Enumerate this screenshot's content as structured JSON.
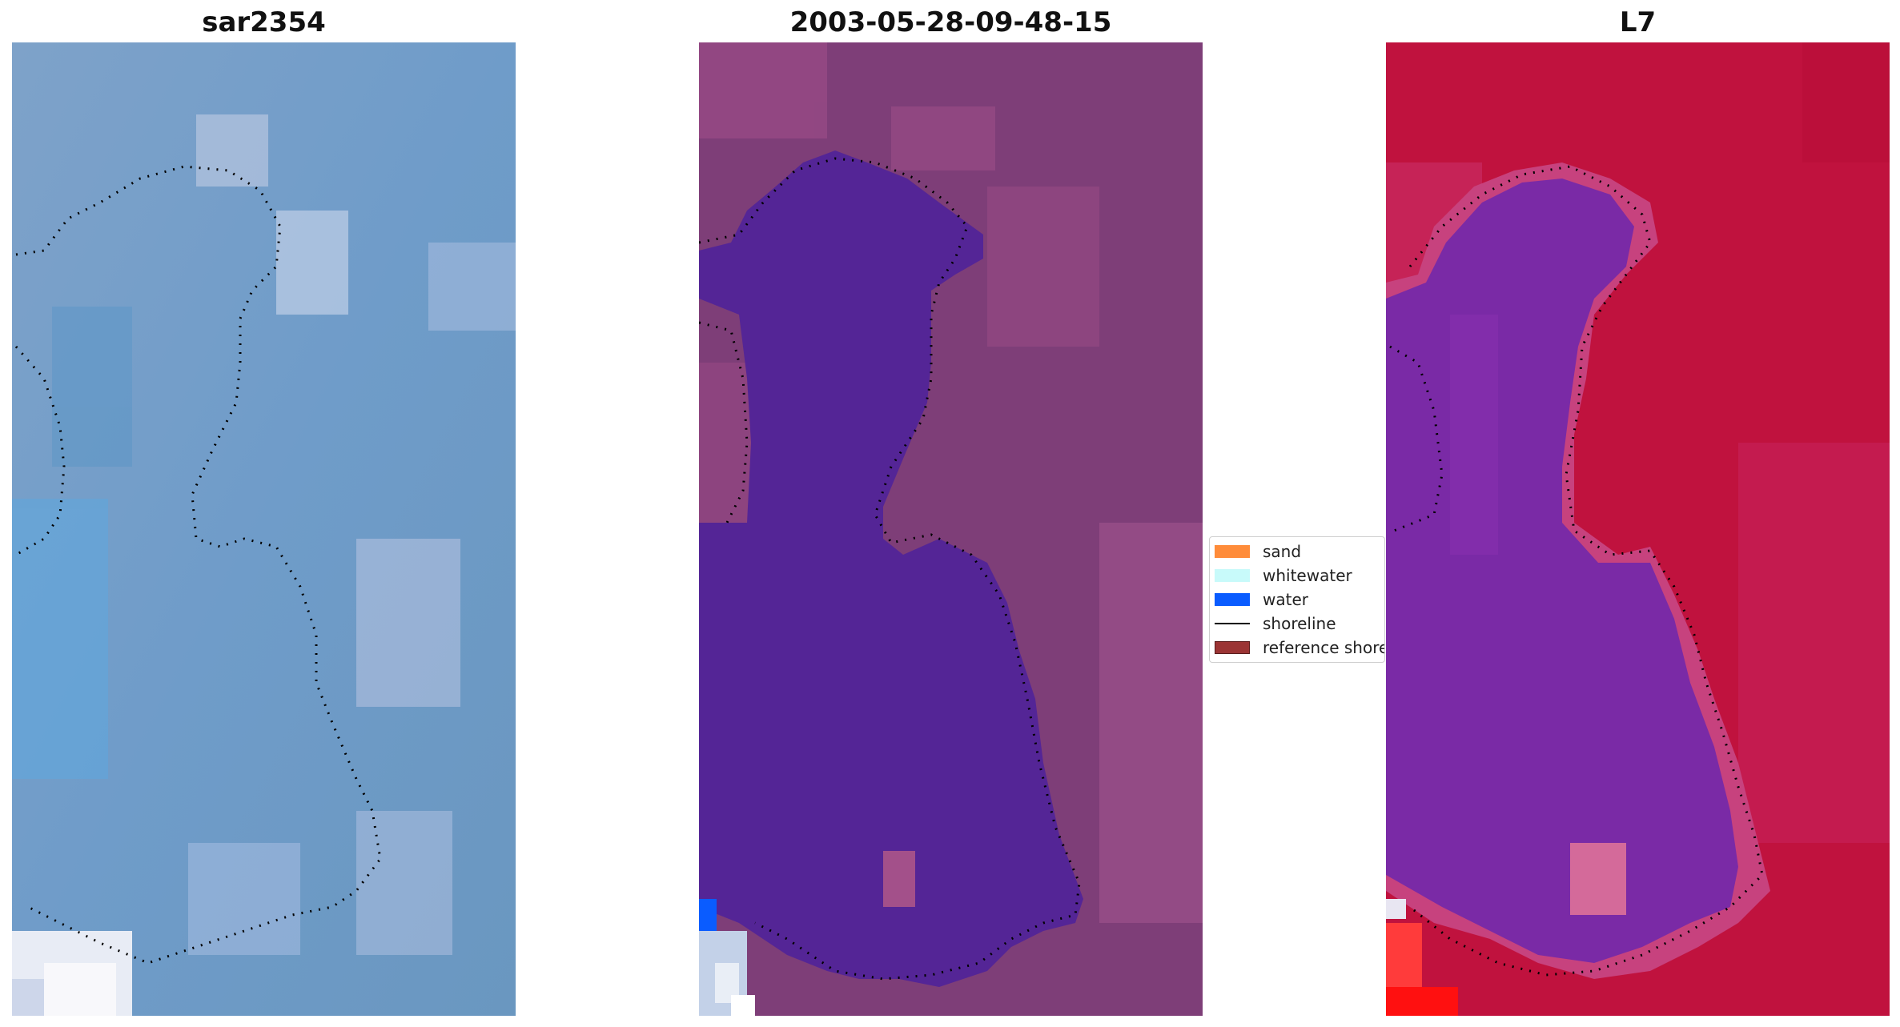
{
  "panels": [
    {
      "title": "sar2354"
    },
    {
      "title": "2003-05-28-09-48-15"
    },
    {
      "title": "L7"
    }
  ],
  "legend": {
    "items": [
      {
        "label": "sand",
        "color": "#ff8c3a",
        "kind": "patch"
      },
      {
        "label": "whitewater",
        "color": "#c8fafa",
        "kind": "patch"
      },
      {
        "label": "water",
        "color": "#0a5cff",
        "kind": "patch"
      },
      {
        "label": "shoreline",
        "color": "#000000",
        "kind": "line"
      },
      {
        "label": "reference shoreline",
        "color": "#9b3434",
        "kind": "patch"
      }
    ]
  },
  "colors": {
    "rgb_background": "#6e9cc6",
    "class_background": "#7e3e78",
    "class_water_region": "#542596",
    "index_background": "#c0123e",
    "index_water_region": "#7a2aa6"
  }
}
